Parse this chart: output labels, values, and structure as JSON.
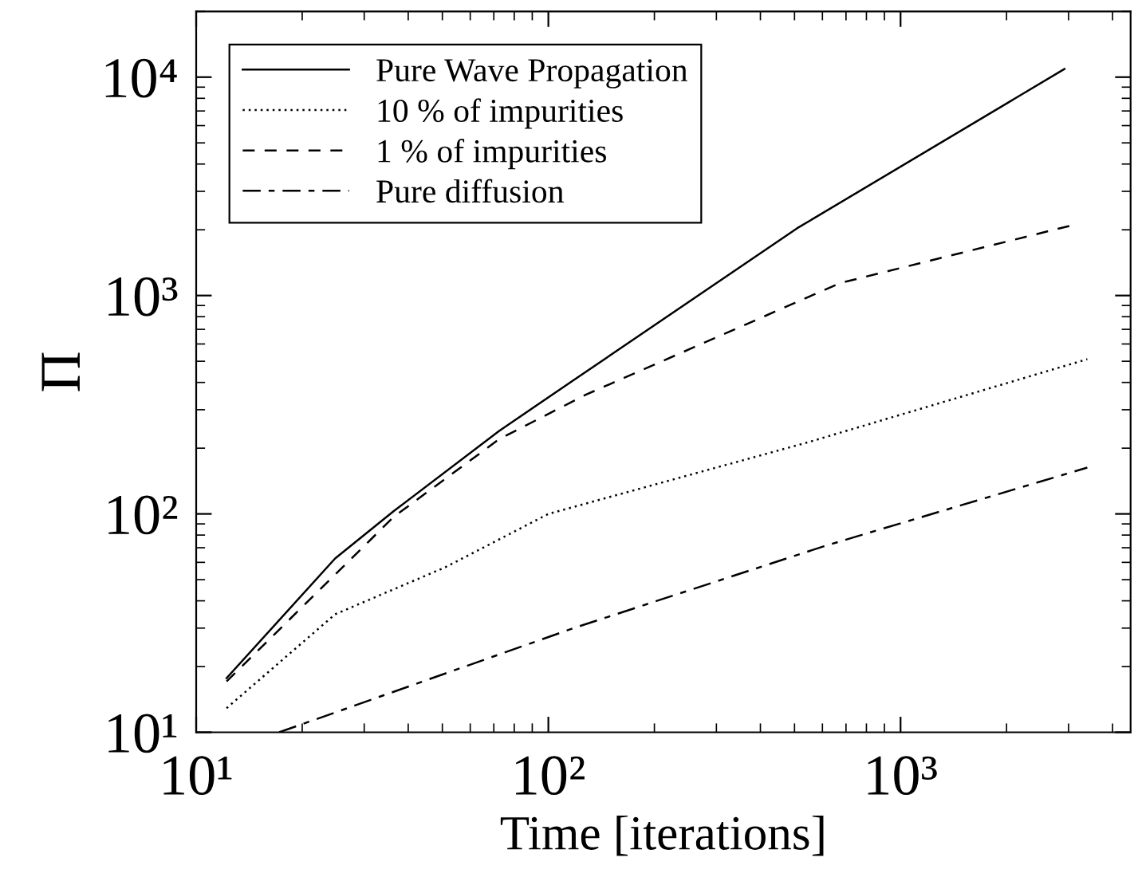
{
  "chart_data": {
    "type": "line",
    "xlabel": "Time [iterations]",
    "ylabel": "Π",
    "log": "xy",
    "grid": false,
    "legend": "top left",
    "xlim": [
      10,
      4500
    ],
    "ylim": [
      10,
      20000
    ],
    "xticks": [
      {
        "value": 10,
        "label": "10¹"
      },
      {
        "value": 100,
        "label": "10²"
      },
      {
        "value": 1000,
        "label": "10³"
      }
    ],
    "yticks": [
      {
        "value": 10,
        "label": "10¹"
      },
      {
        "value": 100,
        "label": "10²"
      },
      {
        "value": 1000,
        "label": "10³"
      },
      {
        "value": 10000,
        "label": "10⁴"
      }
    ],
    "series": [
      {
        "name": "Pure Wave Propagation",
        "color": "#000000",
        "line_style": "solid",
        "x": [
          12.2,
          24.8,
          36.4,
          72.5,
          118,
          508,
          2920
        ],
        "values": [
          17.7,
          62.5,
          103,
          240,
          410,
          2030,
          10900
        ]
      },
      {
        "name": "10 % of impurities",
        "color": "#000000",
        "line_style": "dotted",
        "x": [
          12.2,
          24.8,
          51,
          100,
          547,
          3390
        ],
        "values": [
          12.9,
          34.7,
          57,
          100,
          213,
          511
        ]
      },
      {
        "name": "1 % of impurities",
        "color": "#000000",
        "line_style": "dashed",
        "x": [
          12.2,
          36.4,
          72.5,
          128,
          673,
          3080
        ],
        "values": [
          17.1,
          97,
          220,
          352,
          1140,
          2100
        ]
      },
      {
        "name": "Pure diffusion",
        "color": "#000000",
        "line_style": "dashdot",
        "x": [
          17.2,
          118,
          604,
          3390
        ],
        "values": [
          10,
          30,
          71,
          163
        ]
      }
    ]
  }
}
